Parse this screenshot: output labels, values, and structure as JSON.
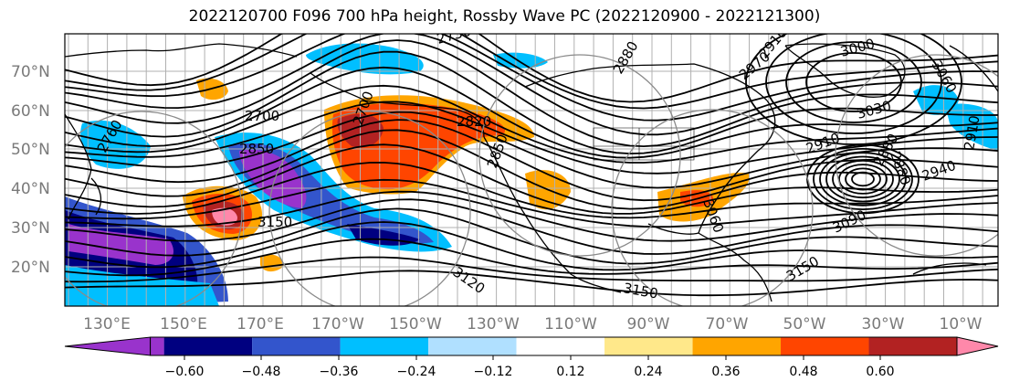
{
  "title": "2022120700 F096 700 hPa height, Rossby Wave PC (2022120900 - 2022121300)",
  "lat_labels": [
    "70°N",
    "60°N",
    "50°N",
    "40°N",
    "30°N",
    "20°N"
  ],
  "lon_labels": [
    "130°E",
    "150°E",
    "170°E",
    "170°W",
    "150°W",
    "130°W",
    "110°W",
    "90°W",
    "70°W",
    "50°W",
    "30°W",
    "10°W"
  ],
  "colorbar": {
    "ticks": [
      "−0.60",
      "−0.48",
      "−0.36",
      "−0.24",
      "−0.12",
      "0.12",
      "0.24",
      "0.36",
      "0.48",
      "0.60"
    ],
    "colors": [
      "#9933cc",
      "#000080",
      "#3355cc",
      "#00bfff",
      "#b0e0ff",
      "#ffffff",
      "#ffe88a",
      "#ffa500",
      "#ff4500",
      "#b22222",
      "#ff88aa"
    ],
    "extend": "both"
  },
  "contour_labels": [
    "2760",
    "2700",
    "2850",
    "3150",
    "2850",
    "2730",
    "2820",
    "2880",
    "3000",
    "2970",
    "2910",
    "3030",
    "2910",
    "2940",
    "2880",
    "3090",
    "3150",
    "3060",
    "3120",
    "3150",
    "2880",
    "2910",
    "2700",
    "3060"
  ],
  "colors": {
    "axis_label": "#7a7a7a",
    "grid": "#b0b0b0",
    "contour": "#000000"
  }
}
